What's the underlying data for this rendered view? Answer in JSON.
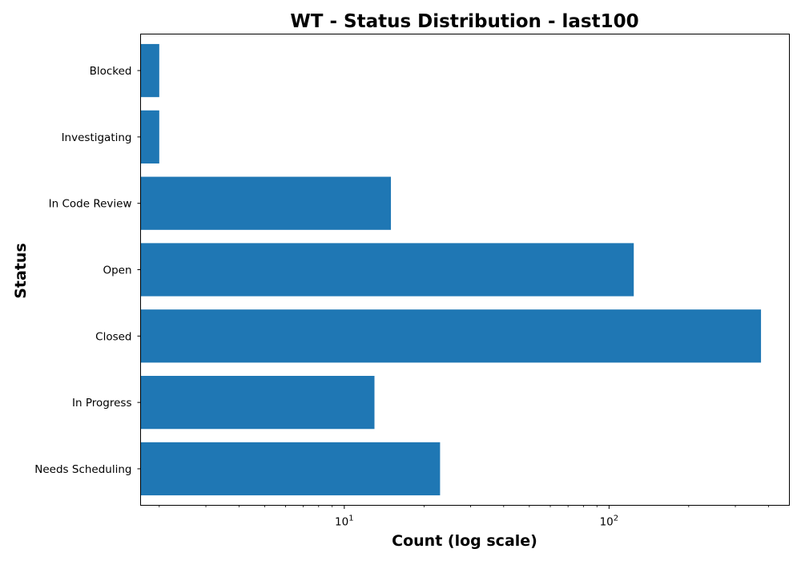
{
  "chart_data": {
    "type": "bar",
    "orientation": "horizontal",
    "title": "WT - Status Distribution - last100",
    "xlabel": "Count (log scale)",
    "ylabel": "Status",
    "x_scale": "log",
    "xlim": [
      1.7,
      480
    ],
    "grid": false,
    "legend": "none",
    "bar_color": "#1f77b4",
    "categories": [
      "Needs Scheduling",
      "In Progress",
      "Closed",
      "Open",
      "In Code Review",
      "Investigating",
      "Blocked"
    ],
    "values": [
      23,
      13,
      375,
      124,
      15,
      2,
      2
    ],
    "x_major_ticks": [
      {
        "value": 10,
        "base": "10",
        "exp": "1"
      },
      {
        "value": 100,
        "base": "10",
        "exp": "2"
      }
    ]
  }
}
